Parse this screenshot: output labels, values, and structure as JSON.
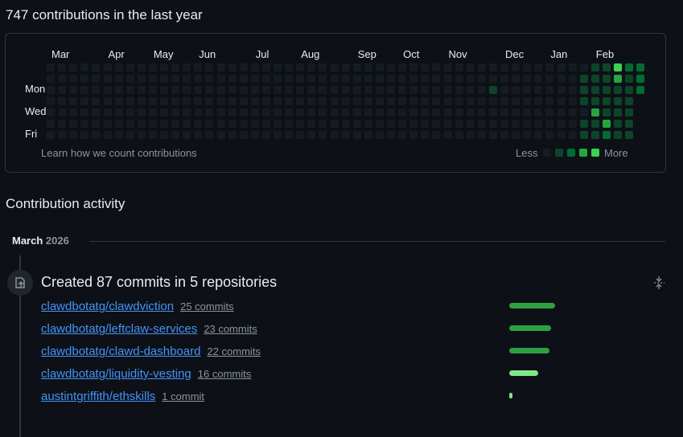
{
  "header": {
    "title": "747 contributions in the last year"
  },
  "calendar": {
    "months": [
      "Mar",
      "Apr",
      "May",
      "Jun",
      "Jul",
      "Aug",
      "Sep",
      "Oct",
      "Nov",
      "Dec",
      "Jan",
      "Feb"
    ],
    "day_labels": [
      "Mon",
      "Wed",
      "Fri"
    ],
    "weeks": [
      [
        0,
        0,
        0,
        0,
        0,
        0,
        0
      ],
      [
        0,
        0,
        0,
        0,
        0,
        0,
        0
      ],
      [
        0,
        0,
        0,
        0,
        0,
        0,
        0
      ],
      [
        0,
        0,
        0,
        0,
        0,
        0,
        0
      ],
      [
        0,
        0,
        0,
        0,
        0,
        0,
        0
      ],
      [
        0,
        0,
        0,
        0,
        0,
        0,
        0
      ],
      [
        0,
        0,
        0,
        0,
        0,
        0,
        0
      ],
      [
        0,
        0,
        0,
        0,
        0,
        0,
        0
      ],
      [
        0,
        0,
        0,
        0,
        0,
        0,
        0
      ],
      [
        0,
        0,
        0,
        0,
        0,
        0,
        0
      ],
      [
        0,
        0,
        0,
        0,
        0,
        0,
        0
      ],
      [
        0,
        0,
        0,
        0,
        0,
        0,
        0
      ],
      [
        0,
        0,
        0,
        0,
        0,
        0,
        0
      ],
      [
        0,
        0,
        0,
        0,
        0,
        0,
        0
      ],
      [
        0,
        0,
        0,
        0,
        0,
        0,
        0
      ],
      [
        0,
        0,
        0,
        0,
        0,
        0,
        0
      ],
      [
        0,
        0,
        0,
        0,
        0,
        0,
        0
      ],
      [
        0,
        0,
        0,
        0,
        0,
        0,
        0
      ],
      [
        0,
        0,
        0,
        0,
        0,
        0,
        0
      ],
      [
        0,
        0,
        0,
        0,
        0,
        0,
        0
      ],
      [
        0,
        0,
        0,
        0,
        0,
        0,
        0
      ],
      [
        0,
        0,
        0,
        0,
        0,
        0,
        0
      ],
      [
        0,
        0,
        0,
        0,
        0,
        0,
        0
      ],
      [
        0,
        0,
        0,
        0,
        0,
        0,
        0
      ],
      [
        0,
        0,
        0,
        0,
        0,
        0,
        0
      ],
      [
        0,
        0,
        0,
        0,
        0,
        0,
        0
      ],
      [
        0,
        0,
        0,
        0,
        0,
        0,
        0
      ],
      [
        0,
        0,
        0,
        0,
        0,
        0,
        0
      ],
      [
        0,
        0,
        0,
        0,
        0,
        0,
        0
      ],
      [
        0,
        0,
        0,
        0,
        0,
        0,
        0
      ],
      [
        0,
        0,
        0,
        0,
        0,
        0,
        0
      ],
      [
        0,
        0,
        0,
        0,
        0,
        0,
        0
      ],
      [
        0,
        0,
        0,
        0,
        0,
        0,
        0
      ],
      [
        0,
        0,
        0,
        0,
        0,
        0,
        0
      ],
      [
        0,
        0,
        0,
        0,
        0,
        0,
        0
      ],
      [
        0,
        0,
        0,
        0,
        0,
        0,
        0
      ],
      [
        0,
        0,
        0,
        0,
        0,
        0,
        0
      ],
      [
        0,
        0,
        0,
        0,
        0,
        0,
        0
      ],
      [
        0,
        0,
        0,
        0,
        0,
        0,
        0
      ],
      [
        0,
        0,
        1,
        0,
        0,
        0,
        0
      ],
      [
        0,
        0,
        0,
        0,
        0,
        0,
        0
      ],
      [
        0,
        0,
        0,
        0,
        0,
        0,
        0
      ],
      [
        0,
        0,
        0,
        0,
        0,
        0,
        0
      ],
      [
        0,
        0,
        0,
        0,
        0,
        0,
        0
      ],
      [
        0,
        0,
        0,
        0,
        0,
        0,
        0
      ],
      [
        0,
        0,
        0,
        0,
        0,
        0,
        0
      ],
      [
        0,
        0,
        0,
        0,
        0,
        0,
        0
      ],
      [
        0,
        1,
        1,
        1,
        0,
        1,
        1
      ],
      [
        1,
        1,
        1,
        1,
        3,
        1,
        1
      ],
      [
        1,
        1,
        1,
        1,
        1,
        3,
        2
      ],
      [
        4,
        3,
        1,
        1,
        1,
        1,
        1
      ],
      [
        2,
        1,
        1,
        1,
        1,
        1,
        1
      ],
      [
        2,
        2,
        2,
        null,
        null,
        null,
        null
      ]
    ],
    "level_colors": [
      "#161b22",
      "#0e4429",
      "#006d32",
      "#26a641",
      "#39d353"
    ],
    "footer_link": "Learn how we count contributions",
    "legend_less": "Less",
    "legend_more": "More"
  },
  "activity": {
    "title": "Contribution activity",
    "month": "March",
    "year": "2026",
    "summary": "Created 87 commits in 5 repositories",
    "repositories": [
      {
        "name": "clawdbotatg/clawdviction",
        "commits": 25,
        "commits_label": "25 commits",
        "color": "#2ea043"
      },
      {
        "name": "clawdbotatg/leftclaw-services",
        "commits": 23,
        "commits_label": "23 commits",
        "color": "#2ea043"
      },
      {
        "name": "clawdbotatg/clawd-dashboard",
        "commits": 22,
        "commits_label": "22 commits",
        "color": "#2ea043"
      },
      {
        "name": "clawdbotatg/liquidity-vesting",
        "commits": 16,
        "commits_label": "16 commits",
        "color": "#7ee787"
      },
      {
        "name": "austintgriffith/ethskills",
        "commits": 1,
        "commits_label": "1 commit",
        "color": "#7ee787"
      }
    ]
  }
}
